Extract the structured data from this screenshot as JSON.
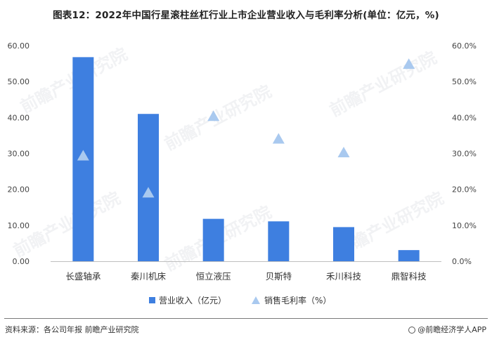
{
  "title": "图表12：2022年中国行星滚柱丝杠行业上市企业营业收入与毛利率分析(单位：亿元，%)",
  "source": "资料来源：各公司年报 前瞻产业研究院",
  "brand": "@前瞻经济学人APP",
  "watermark": "前瞻产业研究院",
  "colors": {
    "bar": "#3e7fe0",
    "marker": "#a9c9ef"
  },
  "chart_data": {
    "type": "bar",
    "categories": [
      "长盛轴承",
      "秦川机床",
      "恒立液压",
      "贝斯特",
      "禾川科技",
      "鼎智科技"
    ],
    "series": [
      {
        "name": "营业收入（亿元）",
        "type": "bar",
        "axis": "left",
        "values": [
          56.8,
          41.0,
          11.8,
          11.1,
          9.5,
          3.1
        ]
      },
      {
        "name": "销售毛利率（%）",
        "type": "scatter",
        "marker": "triangle",
        "axis": "right",
        "values": [
          29.5,
          19.2,
          40.5,
          34.2,
          30.4,
          55.0
        ]
      }
    ],
    "ylim": [
      0,
      60
    ],
    "y2lim": [
      0,
      60
    ],
    "yticks": [
      "0.00",
      "10.00",
      "20.00",
      "30.00",
      "40.00",
      "50.00",
      "60.00"
    ],
    "y2ticks": [
      "0.0%",
      "10.0%",
      "20.0%",
      "30.0%",
      "40.0%",
      "50.0%",
      "60.0%"
    ],
    "grid": false,
    "legend": "bottom"
  }
}
